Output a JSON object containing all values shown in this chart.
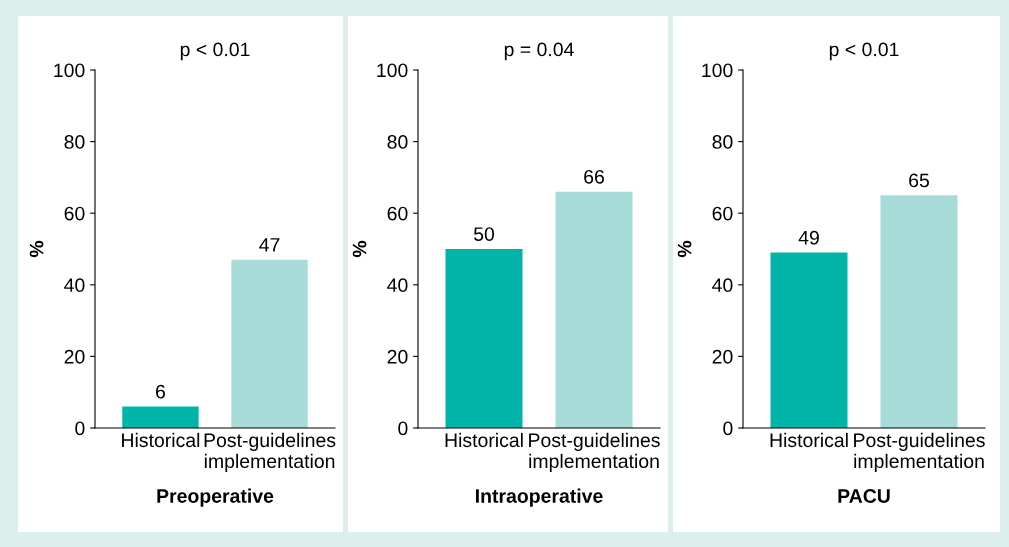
{
  "chart_data": [
    {
      "type": "bar",
      "title": "p < 0.01",
      "xlabel": "Preoperative",
      "ylabel": "%",
      "categories": [
        "Historical",
        "Post-guidelines\nimplementation"
      ],
      "values": [
        6,
        47
      ],
      "colors": [
        "#00b5a8",
        "#a8dcd8"
      ],
      "ylim": [
        0,
        100
      ],
      "yticks": [
        0,
        20,
        40,
        60,
        80,
        100
      ],
      "data_labels": true
    },
    {
      "type": "bar",
      "title": "p = 0.04",
      "xlabel": "Intraoperative",
      "ylabel": "%",
      "categories": [
        "Historical",
        "Post-guidelines\nimplementation"
      ],
      "values": [
        50,
        66
      ],
      "colors": [
        "#00b5a8",
        "#a8dcd8"
      ],
      "ylim": [
        0,
        100
      ],
      "yticks": [
        0,
        20,
        40,
        60,
        80,
        100
      ],
      "data_labels": true
    },
    {
      "type": "bar",
      "title": "p < 0.01",
      "xlabel": "PACU",
      "ylabel": "%",
      "categories": [
        "Historical",
        "Post-guidelines\nimplementation"
      ],
      "values": [
        49,
        65
      ],
      "colors": [
        "#00b5a8",
        "#a8dcd8"
      ],
      "ylim": [
        0,
        100
      ],
      "yticks": [
        0,
        20,
        40,
        60,
        80,
        100
      ],
      "data_labels": true
    }
  ]
}
